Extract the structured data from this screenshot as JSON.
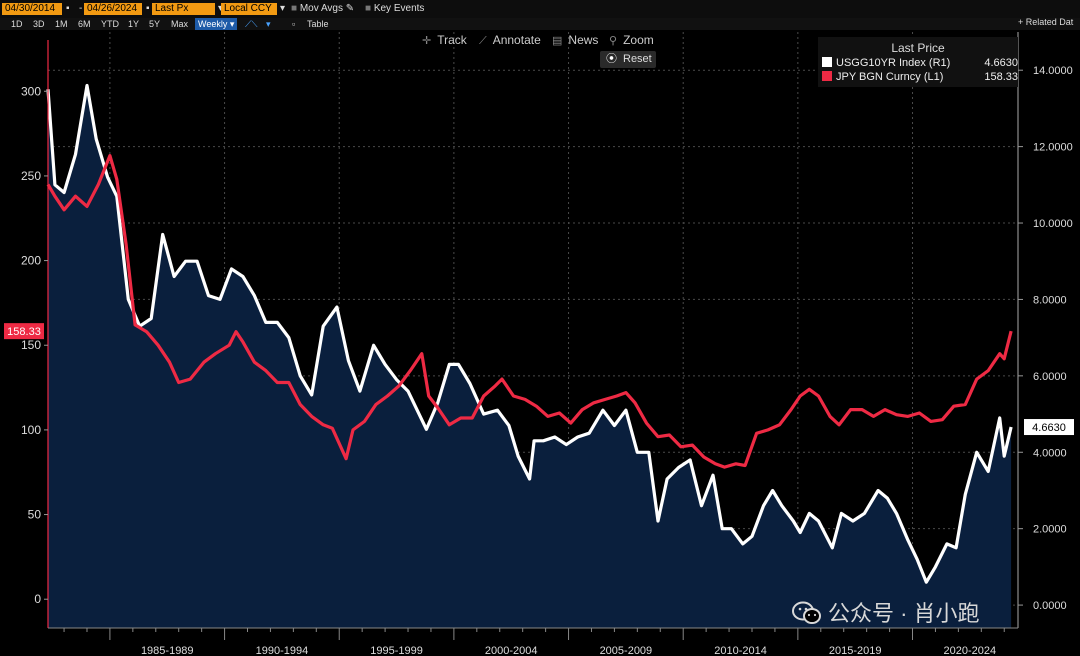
{
  "toolbar_top": {
    "start_date": "04/30/2014",
    "end_date": "04/26/2024",
    "field": "Last Px",
    "currency": "Local CCY",
    "mov_avgs": "Mov Avgs",
    "key_events": "Key Events"
  },
  "periods": [
    "1D",
    "3D",
    "1M",
    "6M",
    "YTD",
    "1Y",
    "5Y",
    "Max"
  ],
  "frequency": "Weekly",
  "table_label": "Table",
  "related_label": "+ Related Dat",
  "tools": {
    "track": "Track",
    "annotate": "Annotate",
    "news": "News",
    "zoom": "Zoom",
    "reset": "Reset"
  },
  "legend": {
    "title": "Last Price",
    "items": [
      {
        "name": "USGG10YR Index  (R1)",
        "value": "4.6630",
        "color": "#ffffff"
      },
      {
        "name": "JPY BGN Curncy  (L1)",
        "value": "158.33",
        "color": "#ee2a44"
      }
    ]
  },
  "badges": {
    "left": "158.33",
    "right": "4.6630"
  },
  "watermark": "公众号 · 肖小跑",
  "chart_data": {
    "type": "line",
    "title": "",
    "xlabel": "",
    "x_ticks": [
      "1985-1989",
      "1990-1994",
      "1995-1999",
      "2000-2004",
      "2005-2009",
      "2010-2014",
      "2015-2019",
      "2020-2024"
    ],
    "left_axis": {
      "ticks": [
        0,
        50,
        100,
        150,
        200,
        250,
        300
      ],
      "ylim": [
        -17,
        335
      ]
    },
    "right_axis": {
      "ticks": [
        "0.0000",
        "2.0000",
        "4.0000",
        "6.0000",
        "8.0000",
        "10.0000",
        "12.0000",
        "14.0000"
      ],
      "ylim": [
        -0.6,
        15
      ]
    },
    "x_range": [
      1982.3,
      2024.6
    ],
    "series": [
      {
        "name": "USGG10YR Index  (R1)",
        "axis": "right",
        "color": "#ffffff",
        "area_fill": "#0a1f3d",
        "x": [
          1982.3,
          1982.6,
          1983.0,
          1983.5,
          1984.0,
          1984.4,
          1984.9,
          1985.3,
          1985.8,
          1986.3,
          1986.8,
          1987.3,
          1987.8,
          1988.3,
          1988.8,
          1989.3,
          1989.8,
          1990.3,
          1990.8,
          1991.3,
          1991.8,
          1992.3,
          1992.8,
          1993.3,
          1993.8,
          1994.3,
          1994.9,
          1995.4,
          1995.9,
          1996.5,
          1997.0,
          1997.5,
          1998.0,
          1998.8,
          1999.3,
          1999.8,
          2000.2,
          2000.7,
          2001.3,
          2001.9,
          2002.4,
          2002.8,
          2003.3,
          2003.5,
          2003.9,
          2004.4,
          2004.9,
          2005.4,
          2005.9,
          2006.5,
          2007.0,
          2007.5,
          2008.0,
          2008.5,
          2008.9,
          2009.3,
          2009.8,
          2010.3,
          2010.8,
          2011.3,
          2011.7,
          2012.1,
          2012.6,
          2013.0,
          2013.5,
          2013.9,
          2014.3,
          2014.8,
          2015.1,
          2015.5,
          2015.9,
          2016.5,
          2016.9,
          2017.4,
          2017.9,
          2018.5,
          2018.9,
          2019.3,
          2019.8,
          2020.2,
          2020.6,
          2021.0,
          2021.5,
          2021.9,
          2022.3,
          2022.8,
          2023.3,
          2023.8,
          2024.0,
          2024.3
        ],
        "y": [
          13.5,
          11.0,
          10.8,
          11.8,
          13.6,
          12.2,
          11.2,
          10.7,
          8.0,
          7.3,
          7.5,
          9.7,
          8.6,
          9.0,
          9.0,
          8.1,
          8.0,
          8.8,
          8.6,
          8.1,
          7.4,
          7.4,
          7.0,
          6.0,
          5.5,
          7.3,
          7.8,
          6.4,
          5.6,
          6.8,
          6.3,
          5.9,
          5.6,
          4.6,
          5.3,
          6.3,
          6.3,
          5.8,
          5.0,
          5.1,
          4.7,
          3.9,
          3.3,
          4.3,
          4.3,
          4.4,
          4.2,
          4.4,
          4.5,
          5.1,
          4.7,
          5.1,
          4.0,
          4.0,
          2.2,
          3.3,
          3.6,
          3.8,
          2.6,
          3.4,
          2.0,
          2.0,
          1.6,
          1.8,
          2.6,
          3.0,
          2.6,
          2.2,
          1.9,
          2.4,
          2.2,
          1.5,
          2.4,
          2.2,
          2.4,
          3.0,
          2.8,
          2.4,
          1.7,
          1.2,
          0.6,
          1.0,
          1.6,
          1.5,
          2.9,
          4.0,
          3.5,
          4.9,
          3.9,
          4.66
        ]
      },
      {
        "name": "JPY BGN Curncy  (L1)",
        "axis": "left",
        "color": "#ee2a44",
        "x": [
          1982.3,
          1982.6,
          1983.0,
          1983.5,
          1984.0,
          1984.5,
          1985.0,
          1985.3,
          1985.7,
          1986.1,
          1986.6,
          1987.1,
          1987.6,
          1988.0,
          1988.5,
          1989.1,
          1989.6,
          1990.2,
          1990.5,
          1990.8,
          1991.3,
          1991.8,
          1992.3,
          1992.8,
          1993.3,
          1993.8,
          1994.3,
          1994.7,
          1995.3,
          1995.6,
          1996.1,
          1996.6,
          1997.1,
          1997.6,
          1998.1,
          1998.6,
          1998.9,
          1999.3,
          1999.8,
          2000.3,
          2000.8,
          2001.3,
          2001.8,
          2002.1,
          2002.6,
          2003.1,
          2003.6,
          2004.1,
          2004.6,
          2005.1,
          2005.6,
          2006.1,
          2006.6,
          2007.1,
          2007.5,
          2007.9,
          2008.4,
          2008.9,
          2009.4,
          2009.9,
          2010.4,
          2010.9,
          2011.4,
          2011.8,
          2012.3,
          2012.7,
          2013.2,
          2013.7,
          2014.2,
          2014.7,
          2015.1,
          2015.5,
          2015.9,
          2016.4,
          2016.8,
          2017.3,
          2017.8,
          2018.3,
          2018.8,
          2019.3,
          2019.8,
          2020.3,
          2020.8,
          2021.3,
          2021.8,
          2022.3,
          2022.8,
          2023.3,
          2023.8,
          2024.0,
          2024.3
        ],
        "y": [
          245,
          238,
          230,
          238,
          232,
          245,
          262,
          248,
          210,
          162,
          158,
          150,
          140,
          128,
          130,
          140,
          145,
          150,
          158,
          152,
          140,
          135,
          128,
          128,
          115,
          108,
          103,
          101,
          83,
          100,
          105,
          115,
          120,
          126,
          135,
          145,
          120,
          113,
          103,
          107,
          107,
          120,
          126,
          130,
          120,
          118,
          114,
          108,
          110,
          104,
          112,
          116,
          118,
          120,
          122,
          116,
          104,
          96,
          97,
          90,
          91,
          84,
          80,
          78,
          80,
          79,
          98,
          100,
          103,
          112,
          120,
          124,
          120,
          108,
          103,
          112,
          112,
          108,
          112,
          109,
          108,
          110,
          105,
          106,
          114,
          115,
          130,
          135,
          145,
          142,
          158.33
        ]
      }
    ]
  }
}
